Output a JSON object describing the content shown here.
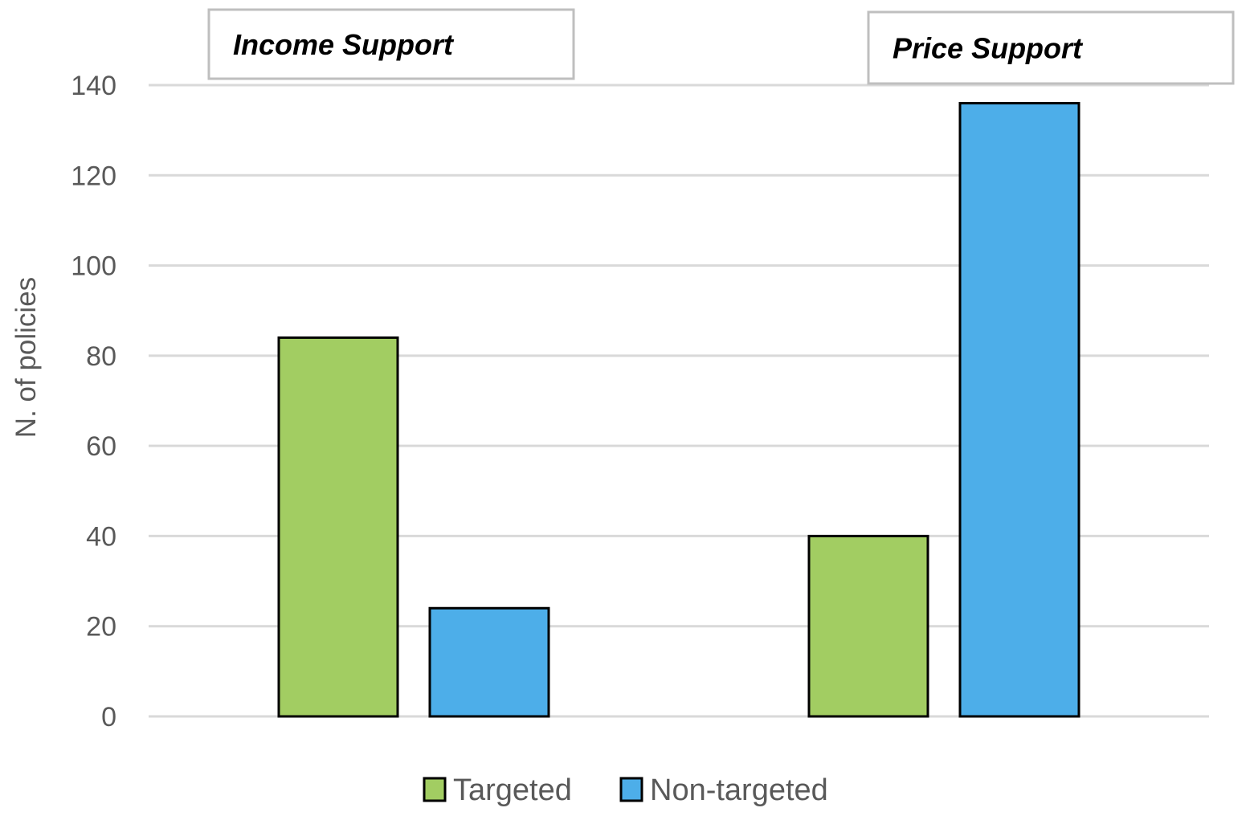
{
  "chart_data": {
    "type": "bar",
    "categories": [
      "Income Support",
      "Price Support"
    ],
    "series": [
      {
        "name": "Targeted",
        "color": "#a2cd62",
        "values": [
          84,
          40
        ]
      },
      {
        "name": "Non-targeted",
        "color": "#4daee9",
        "values": [
          24,
          136
        ]
      }
    ],
    "ylabel": "N. of policies",
    "ylim": [
      0,
      140
    ],
    "yticks": [
      0,
      20,
      40,
      60,
      80,
      100,
      120,
      140
    ],
    "grid": true,
    "legend_position": "bottom",
    "category_label_style": "boxed italic bold above plot"
  }
}
